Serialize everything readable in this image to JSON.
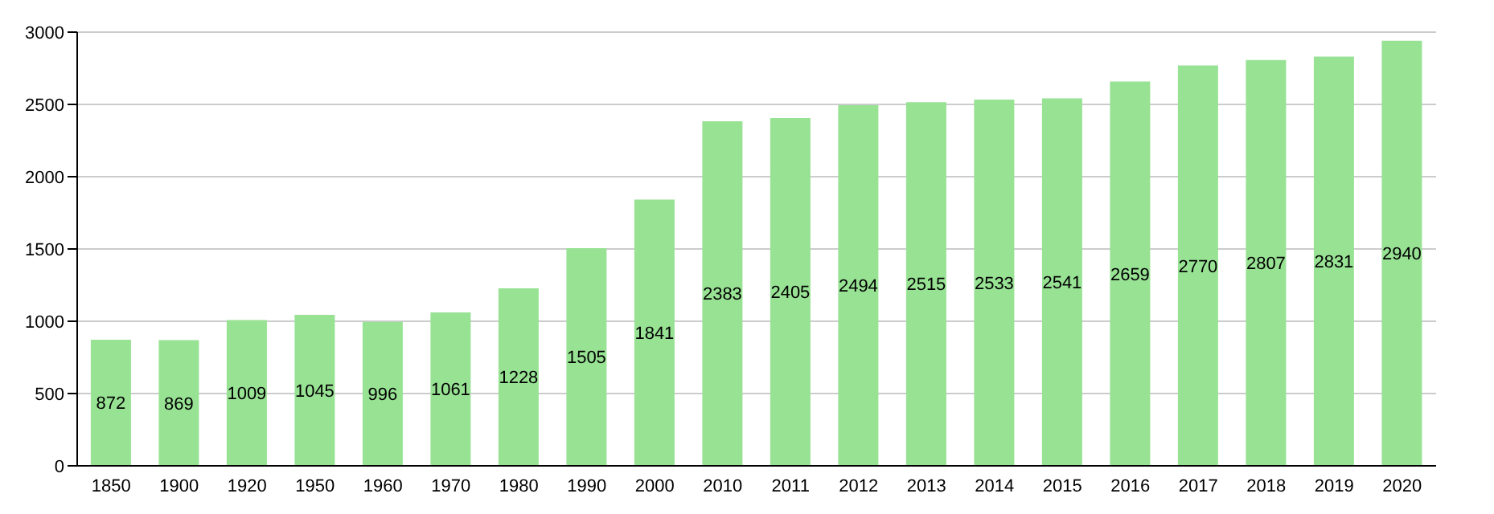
{
  "chart_data": {
    "type": "bar",
    "categories": [
      "1850",
      "1900",
      "1920",
      "1950",
      "1960",
      "1970",
      "1980",
      "1990",
      "2000",
      "2010",
      "2011",
      "2012",
      "2013",
      "2014",
      "2015",
      "2016",
      "2017",
      "2018",
      "2019",
      "2020"
    ],
    "values": [
      872,
      869,
      1009,
      1045,
      996,
      1061,
      1228,
      1505,
      1841,
      2383,
      2405,
      2494,
      2515,
      2533,
      2541,
      2659,
      2770,
      2807,
      2831,
      2940
    ],
    "color": "#98e294",
    "ylim": [
      0,
      3000
    ],
    "yticks": [
      0,
      500,
      1000,
      1500,
      2000,
      2500,
      3000
    ],
    "grid": "y",
    "data_labels": true
  }
}
